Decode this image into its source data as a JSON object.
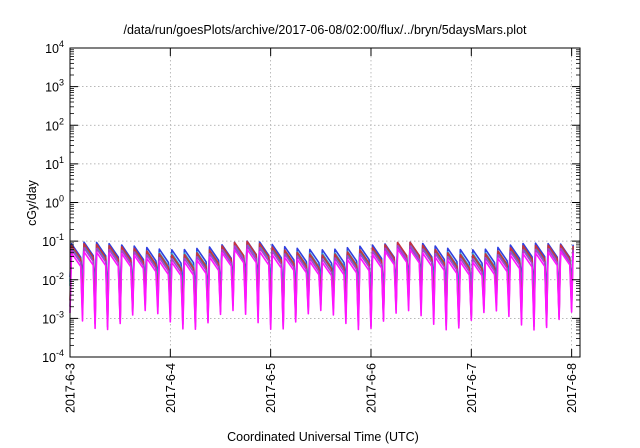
{
  "chart_data": {
    "type": "line",
    "title": "/data/run/goesPlots/archive/2017-06-08/02:00/flux/../bryn/5daysMars.plot",
    "xlabel": "Coordinated Universal Time (UTC)",
    "ylabel": "cGy/day",
    "y_scale": "log",
    "ylim": [
      0.0001,
      10000
    ],
    "y_ticks": [
      {
        "base": "10",
        "exp": "-4",
        "value": 0.0001
      },
      {
        "base": "10",
        "exp": "-3",
        "value": 0.001
      },
      {
        "base": "10",
        "exp": "-2",
        "value": 0.01
      },
      {
        "base": "10",
        "exp": "-1",
        "value": 0.1
      },
      {
        "base": "10",
        "exp": "0",
        "value": 1
      },
      {
        "base": "10",
        "exp": "1",
        "value": 10
      },
      {
        "base": "10",
        "exp": "2",
        "value": 100
      },
      {
        "base": "10",
        "exp": "3",
        "value": 1000
      },
      {
        "base": "10",
        "exp": "4",
        "value": 10000
      }
    ],
    "x_ticks": [
      "2017-6-3",
      "2017-6-4",
      "2017-6-5",
      "2017-6-6",
      "2017-6-7",
      "2017-6-8"
    ],
    "xlim": [
      "2017-06-03 00:00",
      "2017-06-08 02:00"
    ],
    "grid": true,
    "legend": "none",
    "series": [
      {
        "color": "#2f3fe0",
        "peak_range": [
          0.045,
          0.1
        ],
        "trough_range": [
          0.004,
          0.012
        ]
      },
      {
        "color": "#2aa8d8",
        "peak_range": [
          0.035,
          0.085
        ],
        "trough_range": [
          0.003,
          0.009
        ]
      },
      {
        "color": "#1fa89a",
        "peak_range": [
          0.03,
          0.075
        ],
        "trough_range": [
          0.002,
          0.007
        ]
      },
      {
        "color": "#c8323c",
        "peak_range": [
          0.028,
          0.1
        ],
        "trough_range": [
          0.0008,
          0.003
        ]
      },
      {
        "color": "#b03ad0",
        "peak_range": [
          0.022,
          0.08
        ],
        "trough_range": [
          0.0006,
          0.0022
        ]
      },
      {
        "color": "#ff14ff",
        "peak_range": [
          0.018,
          0.065
        ],
        "trough_range": [
          0.0005,
          0.0016
        ]
      }
    ],
    "cycle_hours": 3
  }
}
